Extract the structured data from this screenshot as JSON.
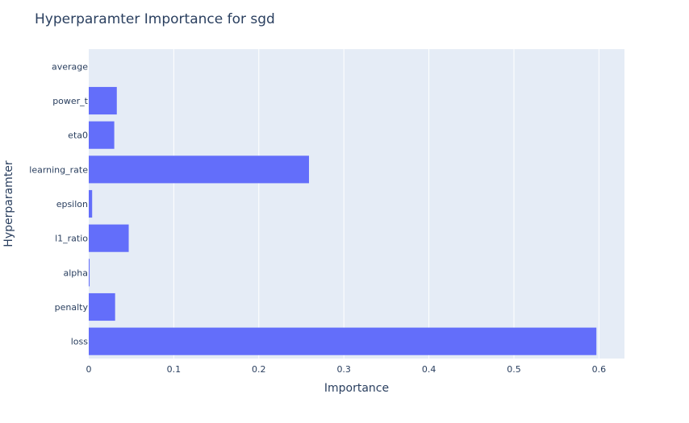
{
  "chart_data": {
    "type": "bar",
    "orientation": "horizontal",
    "title": "Hyperparamter Importance for sgd",
    "xlabel": "Importance",
    "ylabel": "Hyperparamter",
    "categories": [
      "loss",
      "penalty",
      "alpha",
      "l1_ratio",
      "epsilon",
      "learning_rate",
      "eta0",
      "power_t",
      "average"
    ],
    "values": [
      0.597,
      0.031,
      0.001,
      0.047,
      0.004,
      0.259,
      0.03,
      0.033,
      0.0
    ],
    "xlim": [
      0,
      0.63
    ],
    "xticks": [
      0,
      0.1,
      0.2,
      0.3,
      0.4,
      0.5,
      0.6
    ],
    "xtick_labels": [
      "0",
      "0.1",
      "0.2",
      "0.3",
      "0.4",
      "0.5",
      "0.6"
    ],
    "grid": true,
    "colors": {
      "bar": "#636efa",
      "plot_bg": "#e5ecf6",
      "grid": "#ffffff",
      "text": "#2a3f5f"
    }
  }
}
